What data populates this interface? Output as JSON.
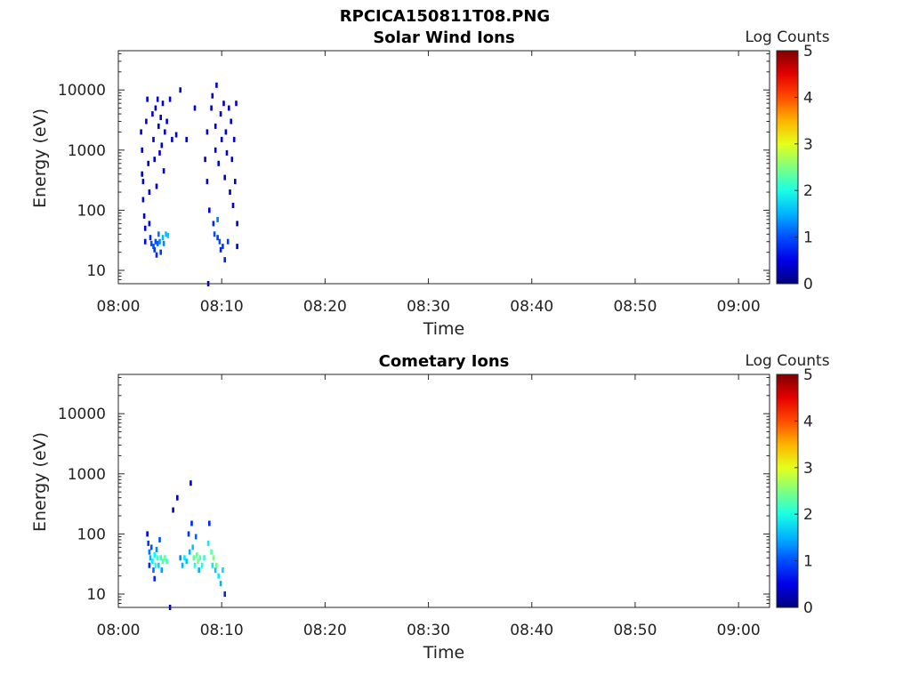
{
  "figure_title": "RPCICA150811T08.PNG",
  "colorbar_label": "Log Counts",
  "colorbar_ticks": [
    "0",
    "1",
    "2",
    "3",
    "4",
    "5"
  ],
  "chart_data": [
    {
      "type": "heatmap",
      "title": "Solar Wind Ions",
      "xlabel": "Time",
      "ylabel": "Energy (eV)",
      "x_ticks": [
        "08:00",
        "08:10",
        "08:20",
        "08:30",
        "08:40",
        "08:50",
        "09:00"
      ],
      "y_ticks": [
        "10",
        "100",
        "1000",
        "10000"
      ],
      "y_scale": "log",
      "ylim": [
        6,
        45000
      ],
      "xlim_minutes": [
        0,
        63
      ],
      "clim": [
        0,
        5
      ],
      "colormap": "jet",
      "points": [
        [
          2.2,
          2000,
          0.4
        ],
        [
          2.3,
          1000,
          0.4
        ],
        [
          2.3,
          400,
          0.4
        ],
        [
          2.4,
          150,
          0.4
        ],
        [
          2.4,
          300,
          0.4
        ],
        [
          2.5,
          80,
          0.5
        ],
        [
          2.6,
          50,
          0.5
        ],
        [
          2.6,
          30,
          0.6
        ],
        [
          2.7,
          3000,
          0.4
        ],
        [
          2.8,
          7000,
          0.4
        ],
        [
          2.9,
          600,
          0.4
        ],
        [
          3.0,
          200,
          0.4
        ],
        [
          3.0,
          60,
          0.6
        ],
        [
          3.1,
          35,
          0.8
        ],
        [
          3.2,
          28,
          1.0
        ],
        [
          3.3,
          4000,
          0.4
        ],
        [
          3.4,
          1500,
          0.4
        ],
        [
          3.4,
          25,
          1.0
        ],
        [
          3.5,
          700,
          0.4
        ],
        [
          3.5,
          22,
          0.9
        ],
        [
          3.6,
          5000,
          0.4
        ],
        [
          3.6,
          30,
          1.0
        ],
        [
          3.7,
          250,
          0.4
        ],
        [
          3.7,
          18,
          0.8
        ],
        [
          3.8,
          7000,
          0.4
        ],
        [
          3.8,
          28,
          1.1
        ],
        [
          3.9,
          2500,
          0.4
        ],
        [
          3.9,
          40,
          1.2
        ],
        [
          4.0,
          900,
          0.4
        ],
        [
          4.0,
          30,
          1.3
        ],
        [
          4.1,
          3500,
          0.4
        ],
        [
          4.1,
          20,
          0.9
        ],
        [
          4.2,
          1200,
          0.4
        ],
        [
          4.3,
          6000,
          0.4
        ],
        [
          4.3,
          35,
          1.5
        ],
        [
          4.4,
          450,
          0.4
        ],
        [
          4.4,
          28,
          1.3
        ],
        [
          4.5,
          2000,
          0.4
        ],
        [
          4.6,
          40,
          1.6
        ],
        [
          4.7,
          3000,
          0.4
        ],
        [
          4.8,
          38,
          1.6
        ],
        [
          5.0,
          7000,
          0.4
        ],
        [
          5.2,
          1500,
          0.4
        ],
        [
          5.6,
          1800,
          0.4
        ],
        [
          6.0,
          10000,
          0.4
        ],
        [
          6.6,
          1500,
          0.4
        ],
        [
          7.4,
          5000,
          0.4
        ],
        [
          8.4,
          700,
          0.4
        ],
        [
          8.6,
          2000,
          0.4
        ],
        [
          8.6,
          300,
          0.4
        ],
        [
          8.7,
          6,
          0.4
        ],
        [
          8.8,
          100,
          0.4
        ],
        [
          9.0,
          5000,
          0.4
        ],
        [
          9.1,
          8000,
          0.4
        ],
        [
          9.2,
          60,
          0.8
        ],
        [
          9.3,
          40,
          1.0
        ],
        [
          9.4,
          2500,
          0.4
        ],
        [
          9.4,
          1000,
          0.4
        ],
        [
          9.5,
          12000,
          0.4
        ],
        [
          9.6,
          70,
          1.2
        ],
        [
          9.6,
          35,
          0.9
        ],
        [
          9.7,
          600,
          0.4
        ],
        [
          9.8,
          30,
          1.0
        ],
        [
          9.9,
          4000,
          0.4
        ],
        [
          9.9,
          22,
          0.8
        ],
        [
          10.0,
          1500,
          0.4
        ],
        [
          10.1,
          25,
          0.9
        ],
        [
          10.2,
          6000,
          0.4
        ],
        [
          10.3,
          350,
          0.4
        ],
        [
          10.3,
          15,
          0.8
        ],
        [
          10.4,
          2000,
          0.4
        ],
        [
          10.5,
          900,
          0.4
        ],
        [
          10.6,
          30,
          0.9
        ],
        [
          10.7,
          5000,
          0.4
        ],
        [
          10.8,
          200,
          0.4
        ],
        [
          10.9,
          3000,
          0.4
        ],
        [
          11.0,
          700,
          0.4
        ],
        [
          11.1,
          120,
          0.4
        ],
        [
          11.2,
          1500,
          0.4
        ],
        [
          11.3,
          300,
          0.4
        ],
        [
          11.4,
          6000,
          0.4
        ],
        [
          11.5,
          60,
          0.4
        ],
        [
          11.5,
          25,
          0.4
        ]
      ]
    },
    {
      "type": "heatmap",
      "title": "Cometary Ions",
      "xlabel": "Time",
      "ylabel": "Energy (eV)",
      "x_ticks": [
        "08:00",
        "08:10",
        "08:20",
        "08:30",
        "08:40",
        "08:50",
        "09:00"
      ],
      "y_ticks": [
        "10",
        "100",
        "1000",
        "10000"
      ],
      "y_scale": "log",
      "ylim": [
        6,
        45000
      ],
      "xlim_minutes": [
        0,
        63
      ],
      "clim": [
        0,
        5
      ],
      "colormap": "jet",
      "points": [
        [
          2.8,
          100,
          0.6
        ],
        [
          2.9,
          70,
          0.9
        ],
        [
          3.0,
          50,
          1.2
        ],
        [
          3.0,
          30,
          0.8
        ],
        [
          3.1,
          40,
          1.5
        ],
        [
          3.2,
          60,
          1.0
        ],
        [
          3.3,
          35,
          1.8
        ],
        [
          3.4,
          25,
          1.2
        ],
        [
          3.5,
          45,
          1.9
        ],
        [
          3.5,
          18,
          0.8
        ],
        [
          3.6,
          30,
          2.0
        ],
        [
          3.7,
          55,
          1.3
        ],
        [
          3.8,
          40,
          2.2
        ],
        [
          3.9,
          30,
          1.7
        ],
        [
          4.0,
          80,
          1.0
        ],
        [
          4.1,
          40,
          2.1
        ],
        [
          4.2,
          25,
          1.4
        ],
        [
          4.3,
          35,
          2.3
        ],
        [
          4.5,
          40,
          2.4
        ],
        [
          4.7,
          35,
          2.2
        ],
        [
          5.0,
          6,
          0.4
        ],
        [
          5.3,
          250,
          0.4
        ],
        [
          5.7,
          400,
          0.4
        ],
        [
          6.0,
          40,
          1.3
        ],
        [
          6.2,
          30,
          1.5
        ],
        [
          6.4,
          40,
          1.8
        ],
        [
          6.6,
          35,
          1.6
        ],
        [
          6.8,
          100,
          0.9
        ],
        [
          6.9,
          50,
          1.5
        ],
        [
          7.0,
          700,
          0.4
        ],
        [
          7.1,
          150,
          0.8
        ],
        [
          7.2,
          60,
          1.6
        ],
        [
          7.3,
          40,
          2.3
        ],
        [
          7.4,
          30,
          2.0
        ],
        [
          7.5,
          90,
          1.1
        ],
        [
          7.6,
          45,
          2.4
        ],
        [
          7.7,
          35,
          2.5
        ],
        [
          7.8,
          25,
          1.5
        ],
        [
          7.9,
          40,
          2.3
        ],
        [
          8.1,
          30,
          2.0
        ],
        [
          8.3,
          40,
          2.1
        ],
        [
          8.7,
          70,
          1.8
        ],
        [
          8.8,
          150,
          0.8
        ],
        [
          9.0,
          50,
          2.3
        ],
        [
          9.1,
          30,
          1.8
        ],
        [
          9.2,
          40,
          2.5
        ],
        [
          9.4,
          25,
          1.6
        ],
        [
          9.5,
          30,
          2.4
        ],
        [
          9.7,
          20,
          1.8
        ],
        [
          9.9,
          15,
          1.5
        ],
        [
          10.1,
          25,
          1.7
        ],
        [
          10.3,
          10,
          0.8
        ]
      ]
    }
  ]
}
